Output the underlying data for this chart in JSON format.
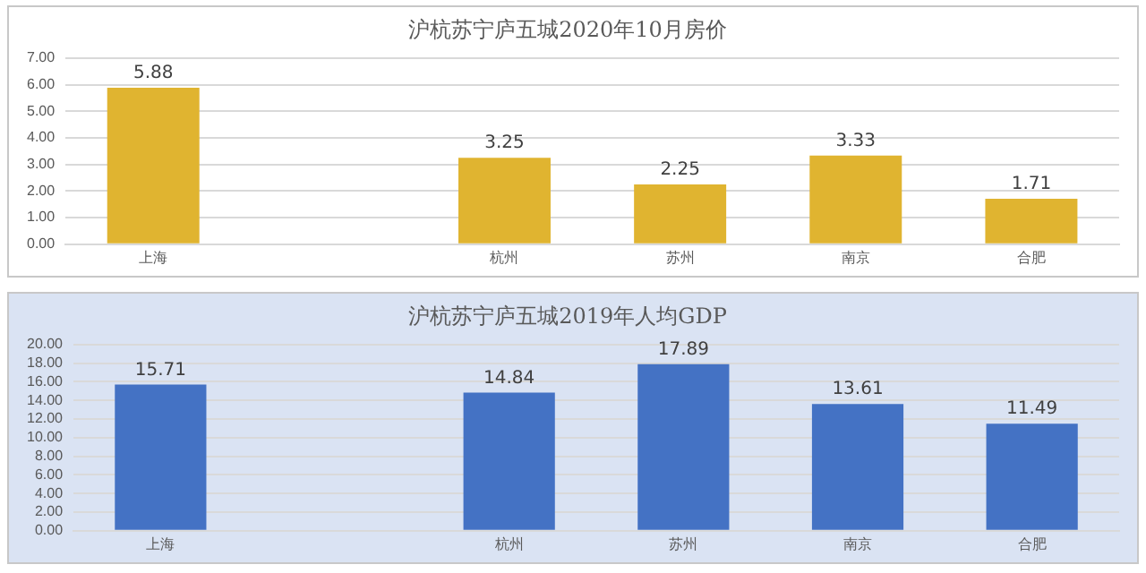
{
  "chart_data": [
    {
      "type": "bar",
      "title": "沪杭苏宁庐五城2020年10月房价",
      "categories": [
        "上海",
        null,
        "杭州",
        "苏州",
        "南京",
        "合肥"
      ],
      "values": [
        5.88,
        null,
        3.25,
        2.25,
        3.33,
        1.71
      ],
      "color": "#e0b430",
      "ylim": [
        0,
        7
      ],
      "yticks": [
        {
          "value": 0,
          "label": "0.00"
        },
        {
          "value": 1,
          "label": "1.00"
        },
        {
          "value": 2,
          "label": "2.00"
        },
        {
          "value": 3,
          "label": "3.00"
        },
        {
          "value": 4,
          "label": "4.00"
        },
        {
          "value": 5,
          "label": "5.00"
        },
        {
          "value": 6,
          "label": "6.00"
        },
        {
          "value": 7,
          "label": "7.00"
        }
      ],
      "grid": "y",
      "data_labels": true,
      "legend": false
    },
    {
      "type": "bar",
      "title": "沪杭苏宁庐五城2019年人均GDP",
      "categories": [
        "上海",
        null,
        "杭州",
        "苏州",
        "南京",
        "合肥"
      ],
      "values": [
        15.71,
        null,
        14.84,
        17.89,
        13.61,
        11.49
      ],
      "color": "#4472c4",
      "ylim": [
        0,
        20
      ],
      "yticks": [
        {
          "value": 0,
          "label": "0.00"
        },
        {
          "value": 2,
          "label": "2.00"
        },
        {
          "value": 4,
          "label": "4.00"
        },
        {
          "value": 6,
          "label": "6.00"
        },
        {
          "value": 8,
          "label": "8.00"
        },
        {
          "value": 10,
          "label": "10.00"
        },
        {
          "value": 12,
          "label": "12.00"
        },
        {
          "value": 14,
          "label": "14.00"
        },
        {
          "value": 16,
          "label": "16.00"
        },
        {
          "value": 18,
          "label": "18.00"
        },
        {
          "value": 20,
          "label": "20.00"
        }
      ],
      "grid": "y",
      "data_labels": true,
      "legend": false
    }
  ]
}
